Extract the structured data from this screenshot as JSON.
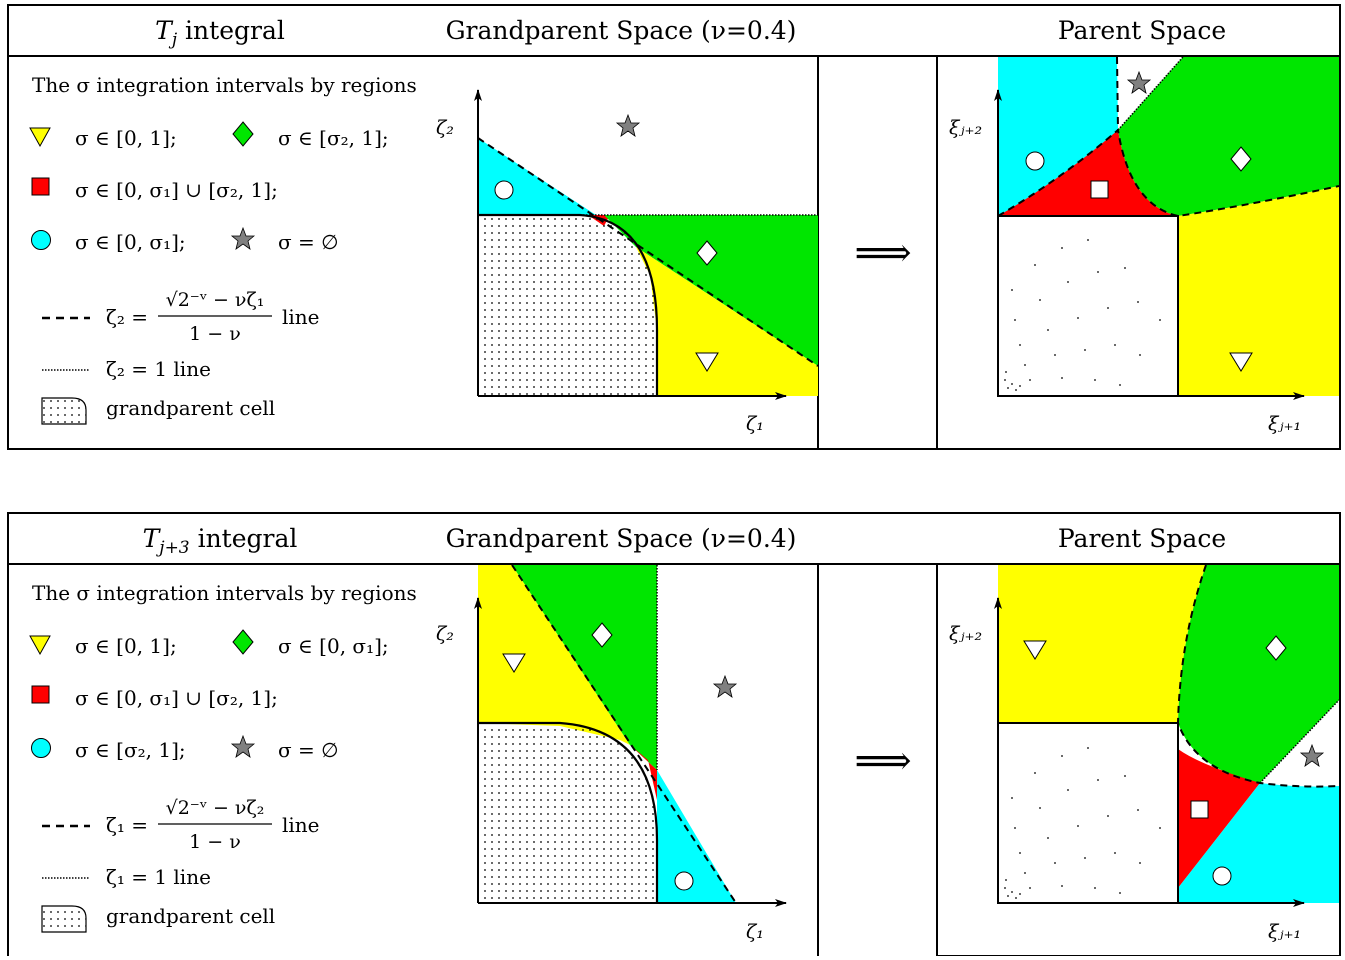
{
  "panels": [
    {
      "id": "tj",
      "header": {
        "integral_name": "T",
        "integral_subscript": "j",
        "integral_word": " integral",
        "grandparent_title": "Grandparent Space (ν=0.4)",
        "parent_title": "Parent Space"
      },
      "legend": {
        "intro": "The σ integration intervals by regions",
        "yellow": "σ ∈ [0, 1];",
        "green": "σ ∈ [σ₂, 1];",
        "red": "σ ∈ [0, σ₁] ∪ [σ₂, 1];",
        "cyan": "σ ∈ [0, σ₁];",
        "star": "σ = ∅",
        "dashed_lhs": "ζ₂ =",
        "dashed_num": "√2⁻ᵛ − νζ₁",
        "dashed_den": "1 − ν",
        "dashed_tail": "line",
        "dotted": "ζ₂ = 1 line",
        "cell": "grandparent cell"
      },
      "axes": {
        "gp_x": "ζ₁",
        "gp_y": "ζ₂",
        "p_x": "ξⱼ₊₁",
        "p_y": "ξⱼ₊₂"
      }
    },
    {
      "id": "tj3",
      "header": {
        "integral_name": "T",
        "integral_subscript": "j+3",
        "integral_word": " integral",
        "grandparent_title": "Grandparent Space (ν=0.4)",
        "parent_title": "Parent Space"
      },
      "legend": {
        "intro": "The σ integration intervals by regions",
        "yellow": "σ ∈ [0, 1];",
        "green": "σ ∈ [0, σ₁];",
        "red": "σ ∈ [0, σ₁] ∪ [σ₂, 1];",
        "cyan": "σ ∈ [σ₂, 1];",
        "star": "σ = ∅",
        "dashed_lhs": "ζ₁ =",
        "dashed_num": "√2⁻ᵛ − νζ₂",
        "dashed_den": "1 − ν",
        "dashed_tail": "line",
        "dotted": "ζ₁ = 1 line",
        "cell": "grandparent cell"
      },
      "axes": {
        "gp_x": "ζ₁",
        "gp_y": "ζ₂",
        "p_x": "ξⱼ₊₁",
        "p_y": "ξⱼ₊₂"
      }
    }
  ],
  "arrow_symbol": "⟹",
  "colors": {
    "yellow": "#ffff00",
    "green": "#00e600",
    "red": "#ff0000",
    "cyan": "#00ffff",
    "star": "#808080"
  }
}
